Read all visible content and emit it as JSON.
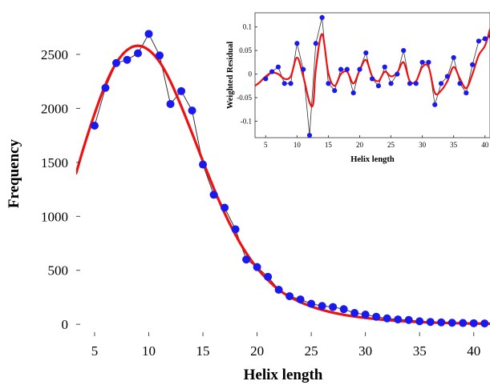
{
  "chart_data": [
    {
      "type": "scatter",
      "xlabel": "Helix length",
      "ylabel": "Frequency",
      "xlim": [
        3.3,
        41.5
      ],
      "ylim": [
        -110,
        2900
      ],
      "xticks": [
        5,
        10,
        15,
        20,
        25,
        30,
        35,
        40
      ],
      "yticks": [
        0,
        500,
        1000,
        1500,
        2000,
        2500
      ],
      "colors": {
        "points": "#1a1aee",
        "fit": "#ee1111",
        "connector": "#333333"
      },
      "series": [
        {
          "x": [
            5,
            6,
            7,
            8,
            9,
            10,
            11,
            12,
            13,
            14,
            15,
            16,
            17,
            18,
            19,
            20,
            21,
            22,
            23,
            24,
            25,
            26,
            27,
            28,
            29,
            30,
            31,
            32,
            33,
            34,
            35,
            36,
            37,
            38,
            39,
            40,
            41
          ],
          "values": [
            1840,
            2190,
            2420,
            2450,
            2510,
            2690,
            2490,
            2040,
            2160,
            1980,
            1480,
            1200,
            1080,
            880,
            600,
            530,
            440,
            320,
            260,
            230,
            190,
            170,
            160,
            140,
            105,
            90,
            70,
            55,
            45,
            40,
            28,
            22,
            18,
            14,
            12,
            10,
            8
          ]
        },
        {
          "x": [
            3.3,
            4,
            5,
            6,
            7,
            8,
            9,
            10,
            11,
            12,
            13,
            14,
            15,
            16,
            17,
            18,
            19,
            20,
            21,
            22,
            23,
            24,
            25,
            26,
            27,
            28,
            29,
            30,
            31,
            32,
            33,
            34,
            35,
            36,
            37,
            38,
            39,
            40,
            41,
            41.5
          ],
          "values": [
            1400,
            1640,
            1950,
            2220,
            2420,
            2540,
            2580,
            2540,
            2430,
            2250,
            2020,
            1770,
            1510,
            1260,
            1030,
            830,
            660,
            520,
            410,
            320,
            255,
            205,
            165,
            133,
            108,
            88,
            72,
            59,
            48,
            39,
            32,
            26,
            21,
            17,
            14,
            11,
            9,
            7,
            6,
            5
          ]
        }
      ]
    },
    {
      "type": "line",
      "xlabel": "Helix length",
      "ylabel": "Weighted Residual",
      "xlim": [
        3.3,
        40.8
      ],
      "ylim": [
        -0.135,
        0.13
      ],
      "xticks": [
        5,
        10,
        15,
        20,
        25,
        30,
        35,
        40
      ],
      "xticklabels": [
        "5",
        "10",
        "15",
        "20",
        "25",
        "30",
        "35",
        "40"
      ],
      "yticks": [
        -0.1,
        -0.05,
        0,
        0.05,
        0.1
      ],
      "yticklabels": [
        "-0.1",
        "-0.05",
        "0",
        "0.05",
        "0.1"
      ],
      "colors": {
        "points": "#1a1aee",
        "fit": "#ee1111",
        "connector": "#333333"
      },
      "series": [
        {
          "x": [
            5,
            6,
            7,
            8,
            9,
            10,
            11,
            12,
            13,
            14,
            15,
            16,
            17,
            18,
            19,
            20,
            21,
            22,
            23,
            24,
            25,
            26,
            27,
            28,
            29,
            30,
            31,
            32,
            33,
            34,
            35,
            36,
            37,
            38,
            39,
            40,
            41
          ],
          "values": [
            -0.01,
            0.005,
            0.015,
            -0.02,
            -0.02,
            0.065,
            0.01,
            -0.13,
            0.065,
            0.12,
            -0.02,
            -0.035,
            0.01,
            0.01,
            -0.04,
            0.01,
            0.045,
            -0.01,
            -0.025,
            0.015,
            -0.02,
            0,
            0.05,
            -0.02,
            -0.02,
            0.025,
            0.025,
            -0.065,
            -0.02,
            -0.005,
            0.035,
            -0.02,
            -0.04,
            0.02,
            0.07,
            0.075,
            0.08
          ]
        },
        {
          "x": [
            3.3,
            4,
            5,
            6,
            7,
            8,
            9,
            10,
            11,
            12,
            12.6,
            13,
            14,
            15,
            16,
            17,
            18,
            19,
            20,
            21,
            22,
            23,
            24,
            25,
            26,
            27,
            28,
            29,
            30,
            31,
            32,
            33,
            34,
            35,
            36,
            37,
            38,
            39,
            40,
            40.8
          ],
          "values": [
            -0.025,
            -0.018,
            -0.005,
            0.003,
            0,
            -0.01,
            -0.005,
            0.035,
            -0.005,
            -0.06,
            -0.062,
            0.01,
            0.085,
            0.002,
            -0.025,
            0,
            0.005,
            -0.02,
            0.008,
            0.03,
            -0.005,
            -0.015,
            0.005,
            -0.005,
            0.003,
            0.025,
            -0.015,
            -0.015,
            0.015,
            0.015,
            -0.04,
            -0.035,
            -0.015,
            0.015,
            -0.01,
            -0.03,
            0,
            0.04,
            0.06,
            0.095
          ]
        }
      ]
    }
  ]
}
